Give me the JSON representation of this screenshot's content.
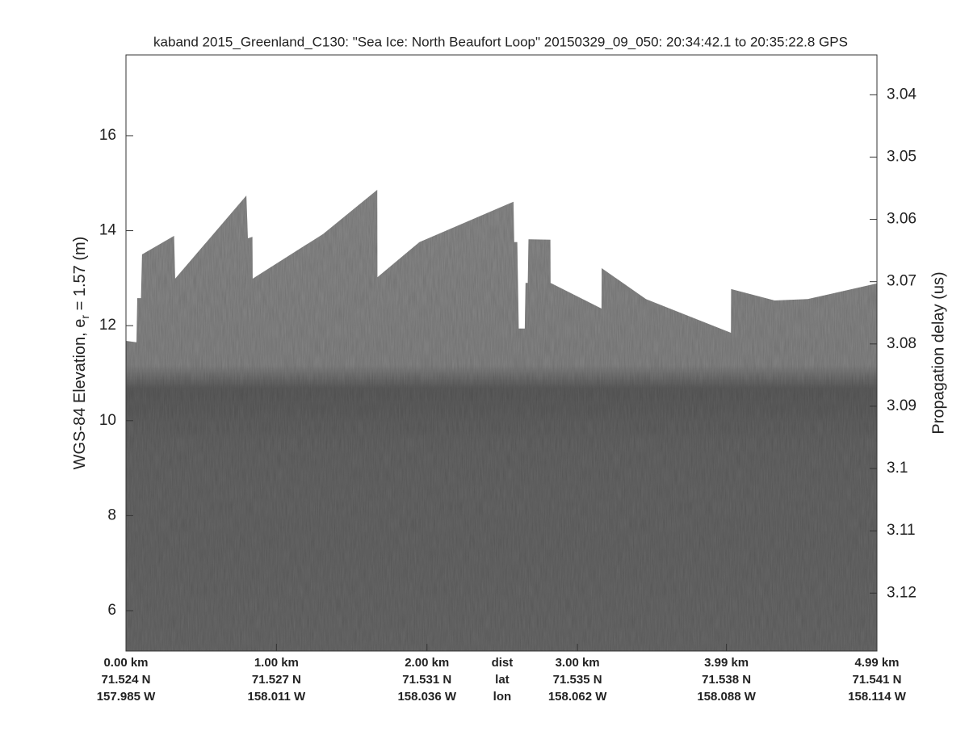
{
  "chart_data": {
    "type": "echogram",
    "title": "kaband 2015_Greenland_C130: \"Sea Ice: North Beaufort Loop\"  20150329_09_050: 20:34:42.1 to 20:35:22.8 GPS",
    "ylabel": "WGS-84 Elevation, e",
    "ylabel_subscript": "r",
    "ylabel_suffix": " = 1.57 (m)",
    "y2label": "Propagation delay (us)",
    "ylim": [
      5.15,
      17.7
    ],
    "yticks": [
      6,
      8,
      10,
      12,
      14,
      16
    ],
    "y2lim": [
      3.1293,
      3.0336
    ],
    "y2ticks": [
      3.04,
      3.05,
      3.06,
      3.07,
      3.08,
      3.09,
      3.1,
      3.11,
      3.12
    ],
    "xlim": [
      0,
      4.99
    ],
    "xticks": [
      {
        "value": 0,
        "label": "0.00 km"
      },
      {
        "value": 1.0,
        "label": "1.00 km"
      },
      {
        "value": 2.0,
        "label": "2.00 km"
      },
      {
        "value": 3.0,
        "label": "3.00 km"
      },
      {
        "value": 3.99,
        "label": "3.99 km"
      },
      {
        "value": 4.99,
        "label": "4.99 km"
      }
    ],
    "xtick_lat": [
      "71.524 N",
      "71.527 N",
      "71.531 N",
      "71.535 N",
      "71.538 N",
      "71.541 N"
    ],
    "xtick_lon": [
      "157.985 W",
      "158.011 W",
      "158.036 W",
      "158.062 W",
      "158.088 W",
      "158.114 W"
    ],
    "row_labels": [
      "dist",
      "lat",
      "lon"
    ],
    "x": [
      0,
      0.07,
      0.075,
      0.1,
      0.107,
      0.32,
      0.327,
      0.8,
      0.81,
      0.84,
      0.842,
      1.31,
      1.67,
      1.671,
      1.95,
      2.575,
      2.58,
      2.6,
      2.61,
      2.65,
      2.655,
      2.67,
      2.675,
      2.82,
      2.821,
      3.16,
      3.161,
      3.455,
      4.02,
      4.021,
      4.31,
      4.53,
      4.99
    ],
    "values": [
      11.68,
      11.65,
      12.58,
      12.58,
      13.5,
      13.89,
      12.99,
      14.74,
      13.84,
      13.87,
      12.99,
      13.93,
      14.86,
      13.02,
      13.76,
      14.61,
      13.76,
      13.76,
      11.94,
      11.94,
      12.9,
      12.9,
      13.82,
      13.81,
      12.9,
      12.36,
      13.21,
      12.56,
      11.85,
      12.77,
      12.53,
      12.56,
      12.89
    ],
    "color": "#868686"
  }
}
